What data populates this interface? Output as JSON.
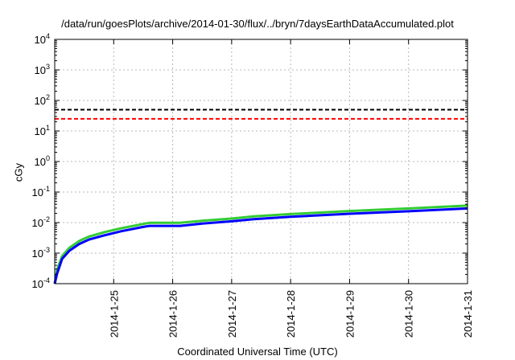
{
  "chart_data": {
    "type": "line",
    "title": "/data/run/goesPlots/archive/2014-01-30/flux/../bryn/7daysEarthDataAccumulated.plot",
    "xlabel": "Coordinated Universal Time (UTC)",
    "ylabel": "cGy",
    "xscale": "date",
    "yscale": "log",
    "xlim": [
      "2014-01-24T00:00",
      "2014-01-31T00:00"
    ],
    "ylim": [
      0.0001,
      10000
    ],
    "x_tick_labels": [
      "2014-1-25",
      "2014-1-26",
      "2014-1-27",
      "2014-1-28",
      "2014-1-29",
      "2014-1-30",
      "2014-1-31"
    ],
    "y_ticks": [
      {
        "base": "10",
        "exp": "-4"
      },
      {
        "base": "10",
        "exp": "-3"
      },
      {
        "base": "10",
        "exp": "-2"
      },
      {
        "base": "10",
        "exp": "-1"
      },
      {
        "base": "10",
        "exp": "0"
      },
      {
        "base": "10",
        "exp": "1"
      },
      {
        "base": "10",
        "exp": "2"
      },
      {
        "base": "10",
        "exp": "3"
      },
      {
        "base": "10",
        "exp": "4"
      }
    ],
    "grid": true,
    "reference_lines": [
      {
        "y": 50,
        "color": "#000000",
        "style": "dashed"
      },
      {
        "y": 25,
        "color": "#ff0000",
        "style": "dashed"
      }
    ],
    "series": [
      {
        "color": "#33cc33",
        "x": [
          "2014-01-24T00:00",
          "2014-01-24T01:00",
          "2014-01-24T03:00",
          "2014-01-24T06:00",
          "2014-01-24T10:00",
          "2014-01-24T14:00",
          "2014-01-24T20:00",
          "2014-01-25T03:00",
          "2014-01-25T12:00",
          "2014-01-25T14:30",
          "2014-01-26T03:00",
          "2014-01-26T12:00",
          "2014-01-27T00:00",
          "2014-01-27T09:00",
          "2014-01-28T00:00",
          "2014-01-29T00:00",
          "2014-01-30T00:00",
          "2014-01-31T00:00"
        ],
        "y": [
          0.0001,
          0.0003,
          0.0008,
          0.0015,
          0.0025,
          0.0035,
          0.0048,
          0.0065,
          0.009,
          0.0098,
          0.0098,
          0.0115,
          0.0135,
          0.016,
          0.019,
          0.024,
          0.029,
          0.036
        ]
      },
      {
        "color": "#0000ff",
        "x": [
          "2014-01-24T00:00",
          "2014-01-24T01:00",
          "2014-01-24T03:00",
          "2014-01-24T06:00",
          "2014-01-24T10:00",
          "2014-01-24T14:00",
          "2014-01-24T20:00",
          "2014-01-25T03:00",
          "2014-01-25T12:00",
          "2014-01-25T14:30",
          "2014-01-26T03:00",
          "2014-01-26T12:00",
          "2014-01-27T00:00",
          "2014-01-27T09:00",
          "2014-01-28T00:00",
          "2014-01-29T00:00",
          "2014-01-30T00:00",
          "2014-01-31T00:00"
        ],
        "y": [
          0.0001,
          0.00022,
          0.00065,
          0.0012,
          0.002,
          0.0028,
          0.0038,
          0.0052,
          0.0072,
          0.0078,
          0.0078,
          0.0093,
          0.011,
          0.013,
          0.0155,
          0.0195,
          0.0235,
          0.029
        ]
      }
    ]
  }
}
